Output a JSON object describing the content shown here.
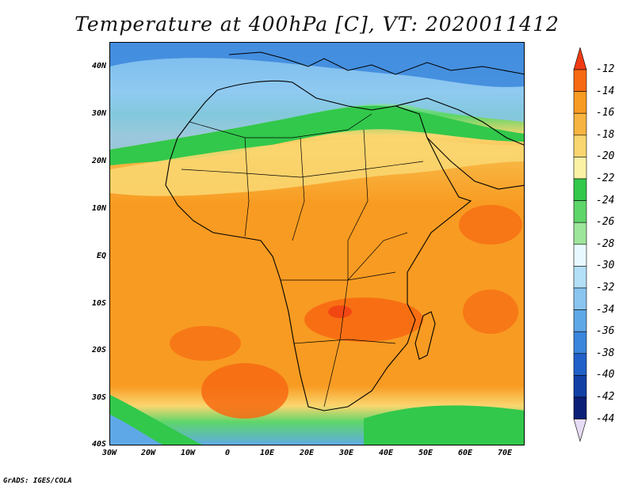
{
  "title": "Temperature at 400hPa [C], VT: 2020011412",
  "credit": "GrADS: IGES/COLA",
  "lat_labels": [
    "40N",
    "30N",
    "20N",
    "10N",
    "EQ",
    "10S",
    "20S",
    "30S",
    "40S"
  ],
  "lon_labels": [
    "30W",
    "20W",
    "10W",
    "0",
    "10E",
    "20E",
    "30E",
    "40E",
    "50E",
    "60E",
    "70E"
  ],
  "colorbar": {
    "levels": [
      "-12",
      "-14",
      "-16",
      "-18",
      "-20",
      "-22",
      "-24",
      "-26",
      "-28",
      "-30",
      "-32",
      "-34",
      "-36",
      "-38",
      "-40",
      "-42",
      "-44"
    ],
    "colors": [
      "#f03c14",
      "#f76a12",
      "#f89b22",
      "#f8b440",
      "#fad670",
      "#fbf2a6",
      "#32c84b",
      "#5ed66a",
      "#9ee59c",
      "#e8f9ff",
      "#b4e0f7",
      "#8ac5f0",
      "#5fa8e8",
      "#3a86dc",
      "#2160c8",
      "#1340a5",
      "#0c1f78",
      "#e6dcf5"
    ]
  }
}
